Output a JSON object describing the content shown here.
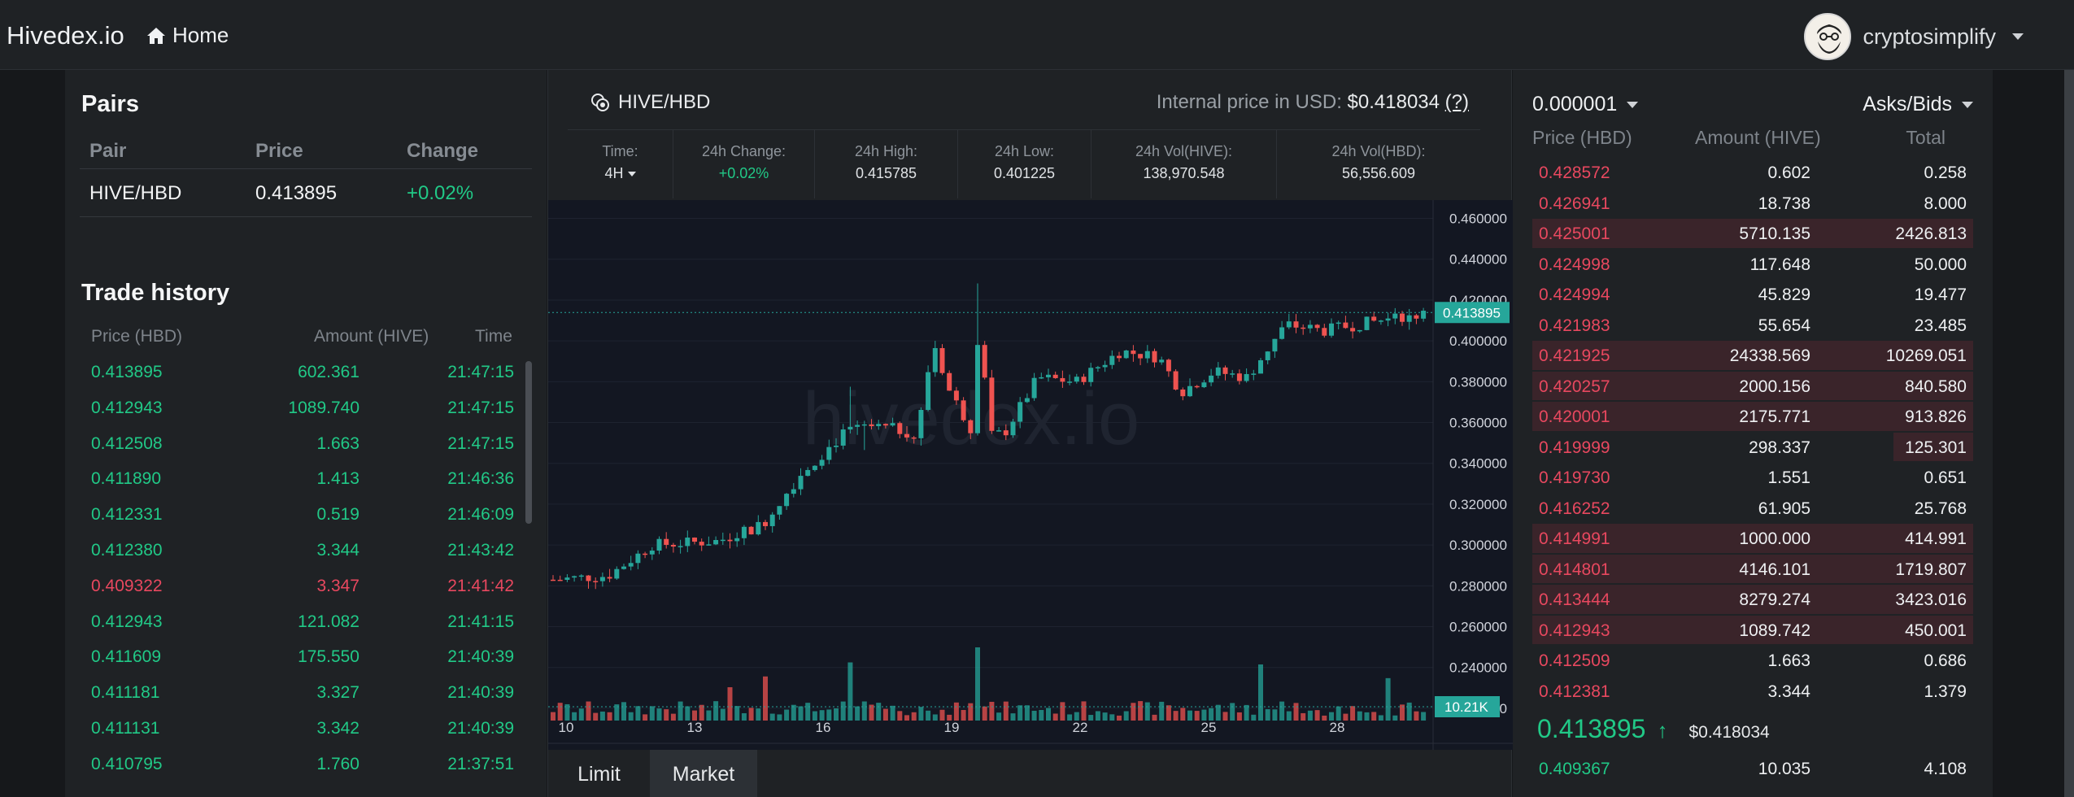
{
  "nav": {
    "brand": "Hivedex.io",
    "home": "Home",
    "username": "cryptosimplify"
  },
  "pairs": {
    "title": "Pairs",
    "headers": [
      "Pair",
      "Price",
      "Change"
    ],
    "rows": [
      {
        "pair": "HIVE/HBD",
        "price": "0.413895",
        "change": "+0.02%"
      }
    ]
  },
  "trade_history": {
    "title": "Trade history",
    "headers": [
      "Price (HBD)",
      "Amount (HIVE)",
      "Time"
    ],
    "rows": [
      {
        "price": "0.413895",
        "amount": "602.361",
        "time": "21:47:15",
        "side": "buy"
      },
      {
        "price": "0.412943",
        "amount": "1089.740",
        "time": "21:47:15",
        "side": "buy"
      },
      {
        "price": "0.412508",
        "amount": "1.663",
        "time": "21:47:15",
        "side": "buy"
      },
      {
        "price": "0.411890",
        "amount": "1.413",
        "time": "21:46:36",
        "side": "buy"
      },
      {
        "price": "0.412331",
        "amount": "0.519",
        "time": "21:46:09",
        "side": "buy"
      },
      {
        "price": "0.412380",
        "amount": "3.344",
        "time": "21:43:42",
        "side": "buy"
      },
      {
        "price": "0.409322",
        "amount": "3.347",
        "time": "21:41:42",
        "side": "sell"
      },
      {
        "price": "0.412943",
        "amount": "121.082",
        "time": "21:41:15",
        "side": "buy"
      },
      {
        "price": "0.411609",
        "amount": "175.550",
        "time": "21:40:39",
        "side": "buy"
      },
      {
        "price": "0.411181",
        "amount": "3.327",
        "time": "21:40:39",
        "side": "buy"
      },
      {
        "price": "0.411131",
        "amount": "3.342",
        "time": "21:40:39",
        "side": "buy"
      },
      {
        "price": "0.410795",
        "amount": "1.760",
        "time": "21:37:51",
        "side": "buy"
      }
    ]
  },
  "market": {
    "pair": "HIVE/HBD",
    "internal_label": "Internal price in USD:",
    "internal_value": "$0.418034",
    "help": "(?)",
    "stats": [
      {
        "label": "Time:",
        "value": "4H"
      },
      {
        "label": "24h Change:",
        "value": "+0.02%"
      },
      {
        "label": "24h High:",
        "value": "0.415785"
      },
      {
        "label": "24h Low:",
        "value": "0.401225"
      },
      {
        "label": "24h Vol(HIVE):",
        "value": "138,970.548"
      },
      {
        "label": "24h Vol(HBD):",
        "value": "56,556.609"
      }
    ],
    "watermark": "hivedex.io",
    "tabs": [
      "Limit",
      "Market"
    ]
  },
  "chart_data": {
    "type": "candlestick",
    "x_ticks": [
      "10",
      "13",
      "16",
      "19",
      "22",
      "25",
      "28"
    ],
    "y_ticks": [
      "0.460000",
      "0.440000",
      "0.420000",
      "0.400000",
      "0.380000",
      "0.360000",
      "0.340000",
      "0.320000",
      "0.300000",
      "0.280000",
      "0.260000",
      "0.240000",
      "0.220000"
    ],
    "ylim": [
      0.21,
      0.465
    ],
    "last_price_label": "0.413895",
    "volume_label": "10.21K",
    "colors": {
      "up": "#26a69a",
      "down": "#ef5350"
    }
  },
  "orderbook": {
    "decimals": "0.000001",
    "mode": "Asks/Bids",
    "headers": [
      "Price (HBD)",
      "Amount (HIVE)",
      "Total"
    ],
    "asks": [
      {
        "price": "0.428572",
        "amount": "0.602",
        "total": "0.258",
        "depth": 0.0
      },
      {
        "price": "0.426941",
        "amount": "18.738",
        "total": "8.000",
        "depth": 0.0
      },
      {
        "price": "0.425001",
        "amount": "5710.135",
        "total": "2426.813",
        "depth": 1.0
      },
      {
        "price": "0.424998",
        "amount": "117.648",
        "total": "50.000",
        "depth": 0.0
      },
      {
        "price": "0.424994",
        "amount": "45.829",
        "total": "19.477",
        "depth": 0.0
      },
      {
        "price": "0.421983",
        "amount": "55.654",
        "total": "23.485",
        "depth": 0.0
      },
      {
        "price": "0.421925",
        "amount": "24338.569",
        "total": "10269.051",
        "depth": 1.0
      },
      {
        "price": "0.420257",
        "amount": "2000.156",
        "total": "840.580",
        "depth": 1.0
      },
      {
        "price": "0.420001",
        "amount": "2175.771",
        "total": "913.826",
        "depth": 1.0
      },
      {
        "price": "0.419999",
        "amount": "298.337",
        "total": "125.301",
        "depth": 0.18
      },
      {
        "price": "0.419730",
        "amount": "1.551",
        "total": "0.651",
        "depth": 0.0
      },
      {
        "price": "0.416252",
        "amount": "61.905",
        "total": "25.768",
        "depth": 0.0
      },
      {
        "price": "0.414991",
        "amount": "1000.000",
        "total": "414.991",
        "depth": 1.0
      },
      {
        "price": "0.414801",
        "amount": "4146.101",
        "total": "1719.807",
        "depth": 1.0
      },
      {
        "price": "0.413444",
        "amount": "8279.274",
        "total": "3423.016",
        "depth": 1.0
      },
      {
        "price": "0.412943",
        "amount": "1089.742",
        "total": "450.001",
        "depth": 1.0
      },
      {
        "price": "0.412509",
        "amount": "1.663",
        "total": "0.686",
        "depth": 0.0
      },
      {
        "price": "0.412381",
        "amount": "3.344",
        "total": "1.379",
        "depth": 0.0
      }
    ],
    "mid_price": "0.413895",
    "mid_arrow": "↑",
    "mid_usd": "$0.418034",
    "bids": [
      {
        "price": "0.409367",
        "amount": "10.035",
        "total": "4.108",
        "depth": 0.0
      }
    ]
  }
}
